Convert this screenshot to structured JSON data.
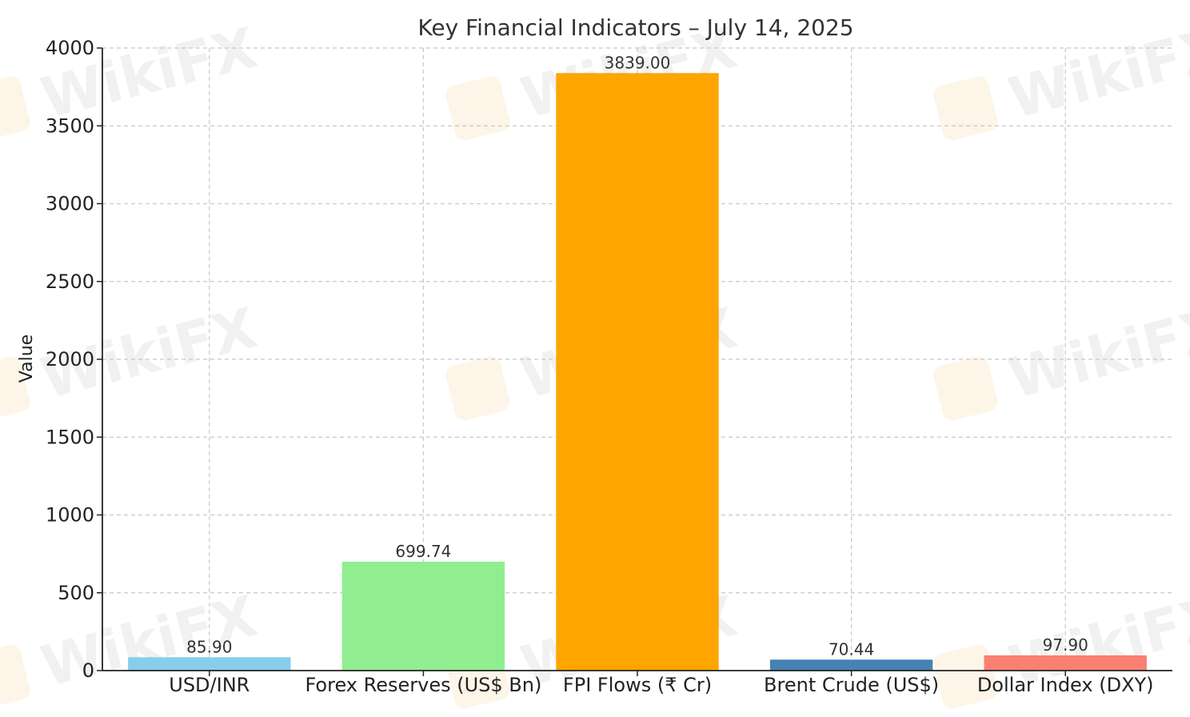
{
  "watermark": {
    "text": "WikiFX"
  },
  "chart_data": {
    "type": "bar",
    "title": "Key Financial Indicators – July 14, 2025",
    "xlabel": "",
    "ylabel": "Value",
    "ylim": [
      0,
      4000
    ],
    "yticks": [
      0,
      500,
      1000,
      1500,
      2000,
      2500,
      3000,
      3500,
      4000
    ],
    "grid": true,
    "categories": [
      "USD/INR",
      "Forex Reserves (US$ Bn)",
      "FPI Flows (₹ Cr)",
      "Brent Crude (US$)",
      "Dollar Index (DXY)"
    ],
    "values": [
      85.9,
      699.74,
      3839.0,
      70.44,
      97.9
    ],
    "value_labels": [
      "85.90",
      "699.74",
      "3839.00",
      "70.44",
      "97.90"
    ],
    "colors": [
      "#87ceeb",
      "#90ee90",
      "#ffa500",
      "#4682b4",
      "#fa8072"
    ]
  }
}
